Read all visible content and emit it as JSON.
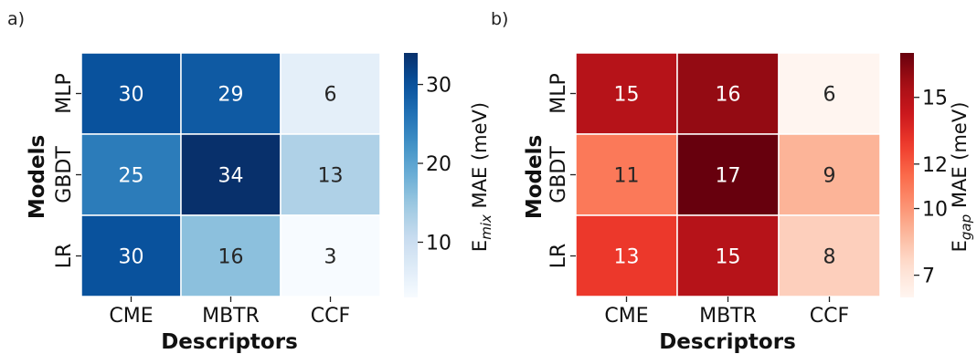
{
  "chart_data": [
    {
      "type": "heatmap",
      "panel_label": "a)",
      "xlabel": "Descriptors",
      "ylabel": "Models",
      "x_categories": [
        "CME",
        "MBTR",
        "CCF"
      ],
      "y_categories": [
        "MLP",
        "GBDT",
        "LR"
      ],
      "values": [
        [
          30,
          29,
          6
        ],
        [
          25,
          34,
          13
        ],
        [
          30,
          16,
          3
        ]
      ],
      "colormap": "Blues",
      "colors": {
        "low": "#f7fbff",
        "high": "#08306b"
      },
      "vmin": 3,
      "vmax": 34,
      "colorbar": {
        "ticks": [
          10,
          20,
          30
        ],
        "title_main": "E",
        "title_sub": "mix",
        "title_rest": " MAE (meV)"
      }
    },
    {
      "type": "heatmap",
      "panel_label": "b)",
      "xlabel": "Descriptors",
      "ylabel": "Models",
      "x_categories": [
        "CME",
        "MBTR",
        "CCF"
      ],
      "y_categories": [
        "MLP",
        "GBDT",
        "LR"
      ],
      "values": [
        [
          15,
          16,
          6
        ],
        [
          11,
          17,
          9
        ],
        [
          13,
          15,
          8
        ]
      ],
      "colormap": "Reds",
      "colors": {
        "low": "#fff5f0",
        "high": "#67000d"
      },
      "vmin": 6,
      "vmax": 17,
      "colorbar": {
        "ticks": [
          7,
          10,
          12,
          15
        ],
        "title_main": "E",
        "title_sub": "gap",
        "title_rest": " MAE (meV)"
      }
    }
  ]
}
